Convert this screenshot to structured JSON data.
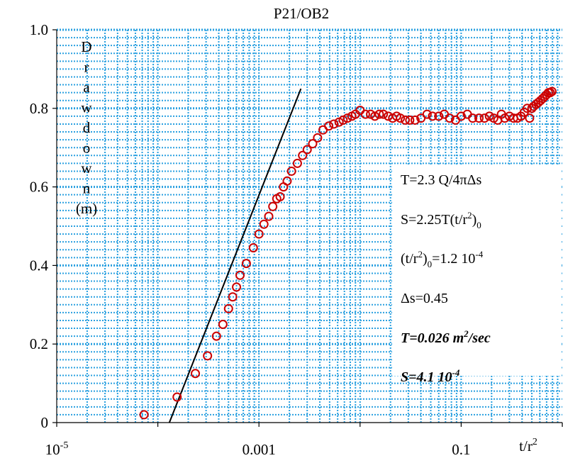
{
  "chart_data": {
    "type": "scatter",
    "title": "P21/OB2",
    "ylabel_letters": [
      "D",
      "r",
      "a",
      "w",
      "d",
      "o",
      "w",
      "n",
      "(m)"
    ],
    "xlabel": {
      "base": "t/r",
      "sup": "2"
    },
    "x_scale": "log",
    "xlim": [
      1e-05,
      1.0
    ],
    "ylim": [
      0,
      1.0
    ],
    "y_ticks": [
      {
        "value": 0,
        "label": "0"
      },
      {
        "value": 0.2,
        "label": "0.2"
      },
      {
        "value": 0.4,
        "label": "0.4"
      },
      {
        "value": 0.6,
        "label": "0.6"
      },
      {
        "value": 0.8,
        "label": "0.8"
      },
      {
        "value": 1.0,
        "label": "1.0"
      }
    ],
    "x_ticks": [
      {
        "value": 1e-05,
        "base": "10",
        "sup": "-5"
      },
      {
        "value": 0.001,
        "base": "0.001",
        "sup": ""
      },
      {
        "value": 0.1,
        "base": "0.1",
        "sup": ""
      }
    ],
    "grid": true,
    "marker_color": "#cc0000",
    "line_color": "#000000",
    "grid_color": "#2aa0e0",
    "series": [
      {
        "points": [
          [
            7.3e-05,
            0.02
          ],
          [
            0.000155,
            0.065
          ],
          [
            0.000235,
            0.125
          ],
          [
            0.00031,
            0.17
          ],
          [
            0.00038,
            0.22
          ],
          [
            0.00044,
            0.25
          ],
          [
            0.0005,
            0.29
          ],
          [
            0.00055,
            0.32
          ],
          [
            0.0006,
            0.345
          ],
          [
            0.00065,
            0.375
          ],
          [
            0.00075,
            0.405
          ],
          [
            0.00088,
            0.445
          ],
          [
            0.001,
            0.48
          ],
          [
            0.00112,
            0.505
          ],
          [
            0.00125,
            0.525
          ],
          [
            0.00137,
            0.55
          ],
          [
            0.0015,
            0.57
          ],
          [
            0.00162,
            0.575
          ],
          [
            0.00175,
            0.6
          ],
          [
            0.0019,
            0.615
          ],
          [
            0.0021,
            0.64
          ],
          [
            0.0024,
            0.66
          ],
          [
            0.0027,
            0.68
          ],
          [
            0.003,
            0.695
          ],
          [
            0.0034,
            0.71
          ],
          [
            0.0038,
            0.725
          ],
          [
            0.0043,
            0.745
          ],
          [
            0.0049,
            0.755
          ],
          [
            0.0055,
            0.76
          ],
          [
            0.0062,
            0.765
          ],
          [
            0.0068,
            0.77
          ],
          [
            0.0075,
            0.775
          ],
          [
            0.0083,
            0.78
          ],
          [
            0.009,
            0.785
          ],
          [
            0.01,
            0.795
          ],
          [
            0.0113,
            0.785
          ],
          [
            0.0127,
            0.785
          ],
          [
            0.014,
            0.78
          ],
          [
            0.0155,
            0.785
          ],
          [
            0.017,
            0.785
          ],
          [
            0.019,
            0.78
          ],
          [
            0.021,
            0.775
          ],
          [
            0.023,
            0.78
          ],
          [
            0.025,
            0.775
          ],
          [
            0.028,
            0.77
          ],
          [
            0.031,
            0.77
          ],
          [
            0.035,
            0.77
          ],
          [
            0.04,
            0.775
          ],
          [
            0.046,
            0.785
          ],
          [
            0.052,
            0.78
          ],
          [
            0.06,
            0.78
          ],
          [
            0.068,
            0.785
          ],
          [
            0.077,
            0.775
          ],
          [
            0.088,
            0.77
          ],
          [
            0.1,
            0.78
          ],
          [
            0.115,
            0.785
          ],
          [
            0.13,
            0.775
          ],
          [
            0.15,
            0.775
          ],
          [
            0.17,
            0.775
          ],
          [
            0.19,
            0.78
          ],
          [
            0.21,
            0.775
          ],
          [
            0.23,
            0.77
          ],
          [
            0.25,
            0.785
          ],
          [
            0.27,
            0.775
          ],
          [
            0.3,
            0.78
          ],
          [
            0.33,
            0.775
          ],
          [
            0.36,
            0.775
          ],
          [
            0.39,
            0.78
          ],
          [
            0.42,
            0.79
          ],
          [
            0.45,
            0.8
          ],
          [
            0.475,
            0.775
          ],
          [
            0.5,
            0.8
          ],
          [
            0.52,
            0.805
          ],
          [
            0.55,
            0.81
          ],
          [
            0.58,
            0.815
          ],
          [
            0.61,
            0.82
          ],
          [
            0.64,
            0.825
          ],
          [
            0.67,
            0.83
          ],
          [
            0.7,
            0.835
          ],
          [
            0.73,
            0.84
          ],
          [
            0.76,
            0.84
          ],
          [
            0.79,
            0.843
          ]
        ]
      }
    ],
    "fit_line": {
      "x": [
        0.00013,
        0.0026
      ],
      "y": [
        0.0,
        0.85
      ]
    },
    "annotations": [
      {
        "style": "normal",
        "parts": [
          {
            "t": "T=2.3 Q/4πΔs"
          }
        ]
      },
      {
        "style": "normal",
        "parts": [
          {
            "t": "S=2.25T(t/r"
          },
          {
            "t": "2",
            "sup": true
          },
          {
            "t": ")"
          },
          {
            "t": "0",
            "sub": true
          }
        ]
      },
      {
        "style": "normal",
        "parts": [
          {
            "t": "(t/r"
          },
          {
            "t": "2",
            "sup": true
          },
          {
            "t": ")"
          },
          {
            "t": "0",
            "sub": true
          },
          {
            "t": "=1.2 10"
          },
          {
            "t": "-4",
            "sup": true
          }
        ]
      },
      {
        "style": "normal",
        "parts": [
          {
            "t": "Δs=0.45"
          }
        ]
      },
      {
        "style": "bold",
        "parts": [
          {
            "t": "T=0.026 m"
          },
          {
            "t": "2",
            "sup": true
          },
          {
            "t": "/sec"
          }
        ]
      },
      {
        "style": "bold",
        "parts": [
          {
            "t": "S=4.1 10"
          },
          {
            "t": "-4",
            "sup": true
          }
        ]
      }
    ]
  }
}
